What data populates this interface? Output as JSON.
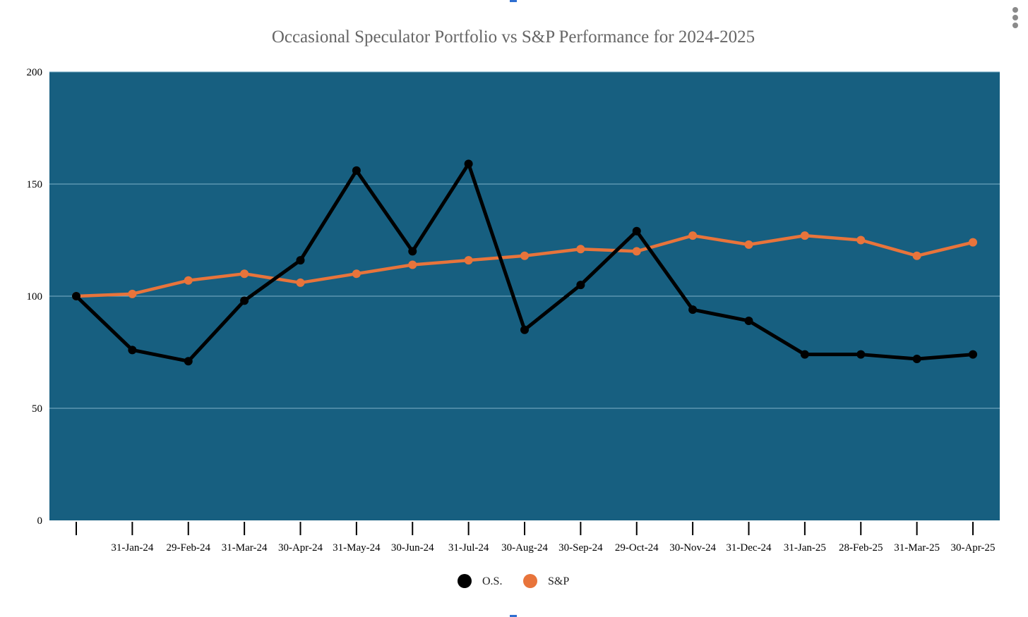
{
  "chart_data": {
    "type": "line",
    "title": "Occasional Speculator Portfolio vs S&P Performance for 2024-2025",
    "categories": [
      "",
      "31-Jan-24",
      "29-Feb-24",
      "31-Mar-24",
      "30-Apr-24",
      "31-May-24",
      "30-Jun-24",
      "31-Jul-24",
      "30-Aug-24",
      "30-Sep-24",
      "29-Oct-24",
      "30-Nov-24",
      "31-Dec-24",
      "31-Jan-25",
      "28-Feb-25",
      "31-Mar-25",
      "30-Apr-25"
    ],
    "series": [
      {
        "name": "O.S.",
        "color": "#000000",
        "values": [
          100,
          76,
          71,
          98,
          116,
          156,
          120,
          159,
          85,
          105,
          129,
          94,
          89,
          74,
          74,
          72,
          74
        ]
      },
      {
        "name": "S&P",
        "color": "#e8743b",
        "values": [
          100,
          101,
          107,
          110,
          106,
          110,
          114,
          116,
          118,
          121,
          120,
          127,
          123,
          127,
          125,
          118,
          124
        ]
      }
    ],
    "ylim": [
      0,
      200
    ],
    "yticks": [
      0,
      50,
      100,
      150,
      200
    ],
    "grid": true,
    "legend_position": "bottom",
    "plot_background": "#175f80"
  }
}
